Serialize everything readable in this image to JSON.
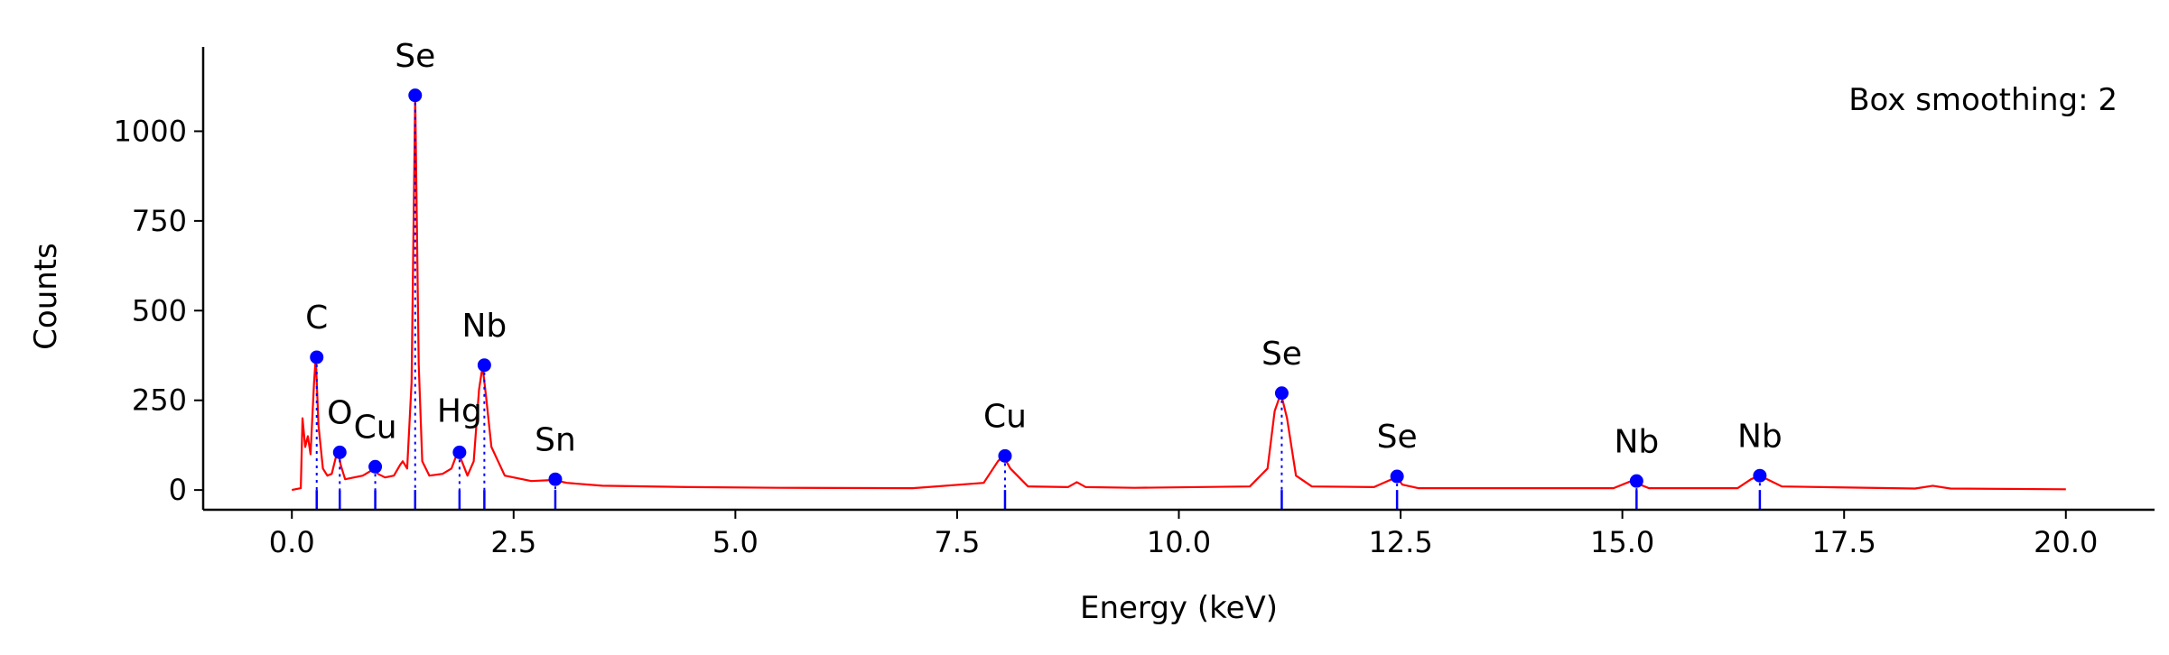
{
  "chart_data": {
    "type": "line",
    "title": "",
    "xlabel": "Energy (keV)",
    "ylabel": "Counts",
    "xlim": [
      -1.0,
      21.0
    ],
    "ylim": [
      -55,
      1235
    ],
    "xticks": [
      0.0,
      2.5,
      5.0,
      7.5,
      10.0,
      12.5,
      15.0,
      17.5,
      20.0
    ],
    "xtick_labels": [
      "0.0",
      "2.5",
      "5.0",
      "7.5",
      "10.0",
      "12.5",
      "15.0",
      "17.5",
      "20.0"
    ],
    "yticks": [
      0,
      250,
      500,
      750,
      1000
    ],
    "ytick_labels": [
      "0",
      "250",
      "500",
      "750",
      "1000"
    ],
    "grid": false,
    "annotation": "Box smoothing: 2",
    "colors": {
      "spectrum": "#ff0000",
      "markers": "#0000ff",
      "axes": "#000000"
    },
    "spectrum": {
      "x": [
        0.0,
        0.1,
        0.12,
        0.15,
        0.18,
        0.21,
        0.25,
        0.27,
        0.3,
        0.35,
        0.4,
        0.45,
        0.5,
        0.525,
        0.55,
        0.6,
        0.7,
        0.8,
        0.9,
        0.93,
        0.97,
        1.05,
        1.15,
        1.22,
        1.25,
        1.3,
        1.35,
        1.39,
        1.43,
        1.47,
        1.55,
        1.7,
        1.8,
        1.86,
        1.9,
        1.98,
        2.05,
        2.11,
        2.15,
        2.19,
        2.25,
        2.4,
        2.7,
        2.95,
        3.1,
        3.5,
        4.5,
        5.5,
        7.0,
        7.8,
        7.96,
        8.02,
        8.1,
        8.3,
        8.75,
        8.85,
        8.95,
        9.5,
        10.8,
        11.0,
        11.08,
        11.15,
        11.22,
        11.32,
        11.5,
        12.2,
        12.4,
        12.45,
        12.52,
        12.7,
        14.9,
        15.1,
        15.3,
        16.3,
        16.45,
        16.55,
        16.8,
        18.3,
        18.5,
        18.7,
        20.0
      ],
      "y": [
        0,
        5,
        200,
        120,
        150,
        100,
        300,
        370,
        180,
        60,
        40,
        45,
        95,
        105,
        70,
        30,
        35,
        40,
        55,
        60,
        45,
        35,
        40,
        70,
        80,
        60,
        300,
        1100,
        350,
        80,
        40,
        45,
        60,
        100,
        90,
        40,
        80,
        280,
        345,
        260,
        120,
        40,
        25,
        28,
        20,
        12,
        8,
        6,
        5,
        20,
        80,
        95,
        60,
        10,
        8,
        22,
        8,
        6,
        10,
        60,
        220,
        270,
        200,
        40,
        10,
        8,
        30,
        38,
        15,
        5,
        5,
        25,
        5,
        5,
        30,
        40,
        10,
        4,
        12,
        4,
        2
      ]
    },
    "peaks": [
      {
        "element": "C",
        "x": 0.28,
        "y": 370,
        "label_y": 450
      },
      {
        "element": "O",
        "x": 0.54,
        "y": 105,
        "label_y": 185
      },
      {
        "element": "Cu",
        "x": 0.94,
        "y": 65,
        "label_y": 145
      },
      {
        "element": "Se",
        "x": 1.39,
        "y": 1100,
        "label_y": 1180
      },
      {
        "element": "Hg",
        "x": 1.89,
        "y": 105,
        "label_y": 190
      },
      {
        "element": "Nb",
        "x": 2.17,
        "y": 348,
        "label_y": 428
      },
      {
        "element": "Sn",
        "x": 2.97,
        "y": 30,
        "label_y": 110
      },
      {
        "element": "Cu",
        "x": 8.04,
        "y": 95,
        "label_y": 175
      },
      {
        "element": "Se",
        "x": 11.16,
        "y": 270,
        "label_y": 350
      },
      {
        "element": "Se",
        "x": 12.46,
        "y": 38,
        "label_y": 118
      },
      {
        "element": "Nb",
        "x": 15.16,
        "y": 25,
        "label_y": 105
      },
      {
        "element": "Nb",
        "x": 16.55,
        "y": 40,
        "label_y": 120
      }
    ]
  }
}
